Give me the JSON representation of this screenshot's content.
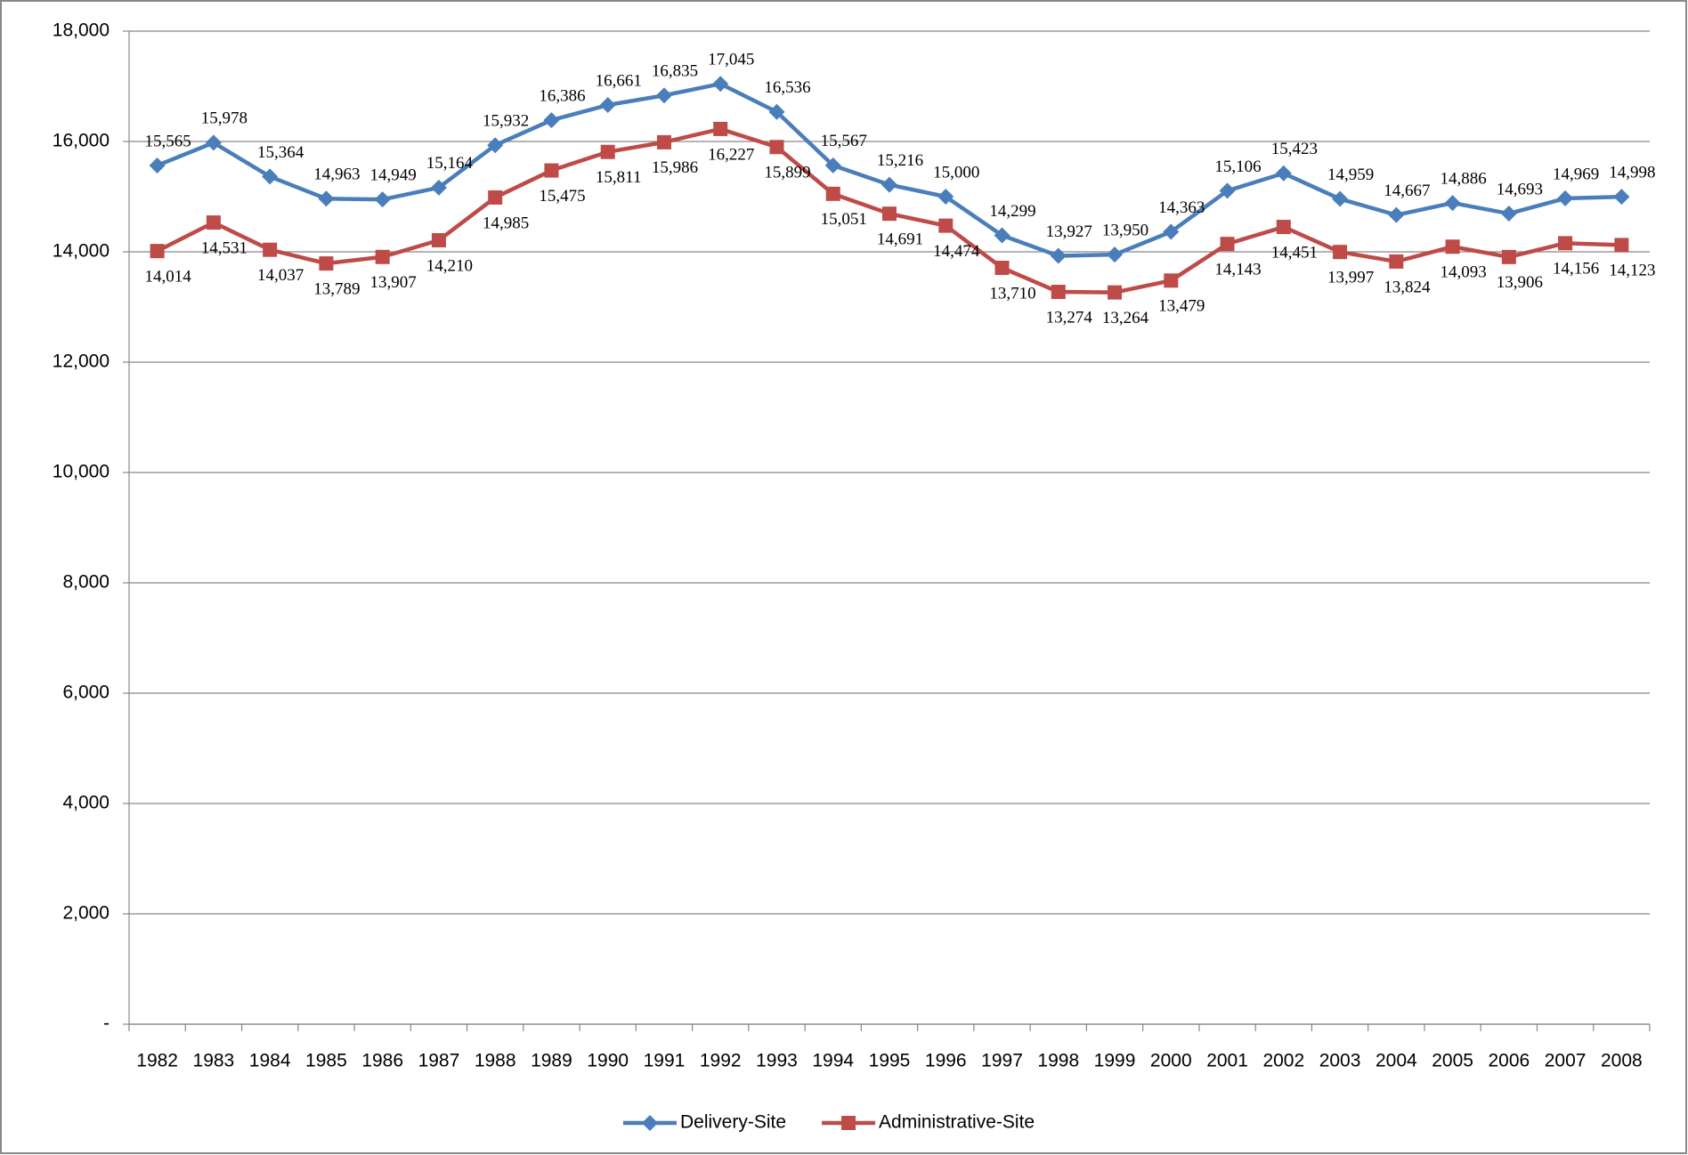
{
  "chart_data": {
    "type": "line",
    "categories": [
      "1982",
      "1983",
      "1984",
      "1985",
      "1986",
      "1987",
      "1988",
      "1989",
      "1990",
      "1991",
      "1992",
      "1993",
      "1994",
      "1995",
      "1996",
      "1997",
      "1998",
      "1999",
      "2000",
      "2001",
      "2002",
      "2003",
      "2004",
      "2005",
      "2006",
      "2007",
      "2008"
    ],
    "series": [
      {
        "name": "Delivery-Site",
        "color": "#4a7ebb",
        "marker": "diamond",
        "values": [
          15565,
          15978,
          15364,
          14963,
          14949,
          15164,
          15932,
          16386,
          16661,
          16835,
          17045,
          16536,
          15567,
          15216,
          15000,
          14299,
          13927,
          13950,
          14363,
          15106,
          15423,
          14959,
          14667,
          14886,
          14693,
          14969,
          14998
        ],
        "value_labels": [
          "15,565",
          "15,978",
          "15,364",
          "14,963",
          "14,949",
          "15,164",
          "15,932",
          "16,386",
          "16,661",
          "16,835",
          "17,045",
          "16,536",
          "15,567",
          "15,216",
          "15,000",
          "14,299",
          "13,927",
          "13,950",
          "14,363",
          "15,106",
          "15,423",
          "14,959",
          "14,667",
          "14,886",
          "14,693",
          "14,969",
          "14,998"
        ]
      },
      {
        "name": "Administrative-Site",
        "color": "#be4b48",
        "marker": "square",
        "values": [
          14014,
          14531,
          14037,
          13789,
          13907,
          14210,
          14985,
          15475,
          15811,
          15986,
          16227,
          15899,
          15051,
          14691,
          14474,
          13710,
          13274,
          13264,
          13479,
          14143,
          14451,
          13997,
          13824,
          14093,
          13906,
          14156,
          14123
        ],
        "value_labels": [
          "14,014",
          "14,531",
          "14,037",
          "13,789",
          "13,907",
          "14,210",
          "14,985",
          "15,475",
          "15,811",
          "15,986",
          "16,227",
          "15,899",
          "15,051",
          "14,691",
          "14,474",
          "13,710",
          "13,274",
          "13,264",
          "13,479",
          "14,143",
          "14,451",
          "13,997",
          "13,824",
          "14,093",
          "13,906",
          "14,156",
          "14,123"
        ]
      }
    ],
    "ylim": [
      0,
      18000
    ],
    "yticks": [
      {
        "value": 0,
        "label": "-"
      },
      {
        "value": 2000,
        "label": "2,000"
      },
      {
        "value": 4000,
        "label": "4,000"
      },
      {
        "value": 6000,
        "label": "6,000"
      },
      {
        "value": 8000,
        "label": "8,000"
      },
      {
        "value": 10000,
        "label": "10,000"
      },
      {
        "value": 12000,
        "label": "12,000"
      },
      {
        "value": 14000,
        "label": "14,000"
      },
      {
        "value": 16000,
        "label": "16,000"
      },
      {
        "value": 18000,
        "label": "18,000"
      }
    ],
    "grid": true,
    "legend": "bottom"
  }
}
